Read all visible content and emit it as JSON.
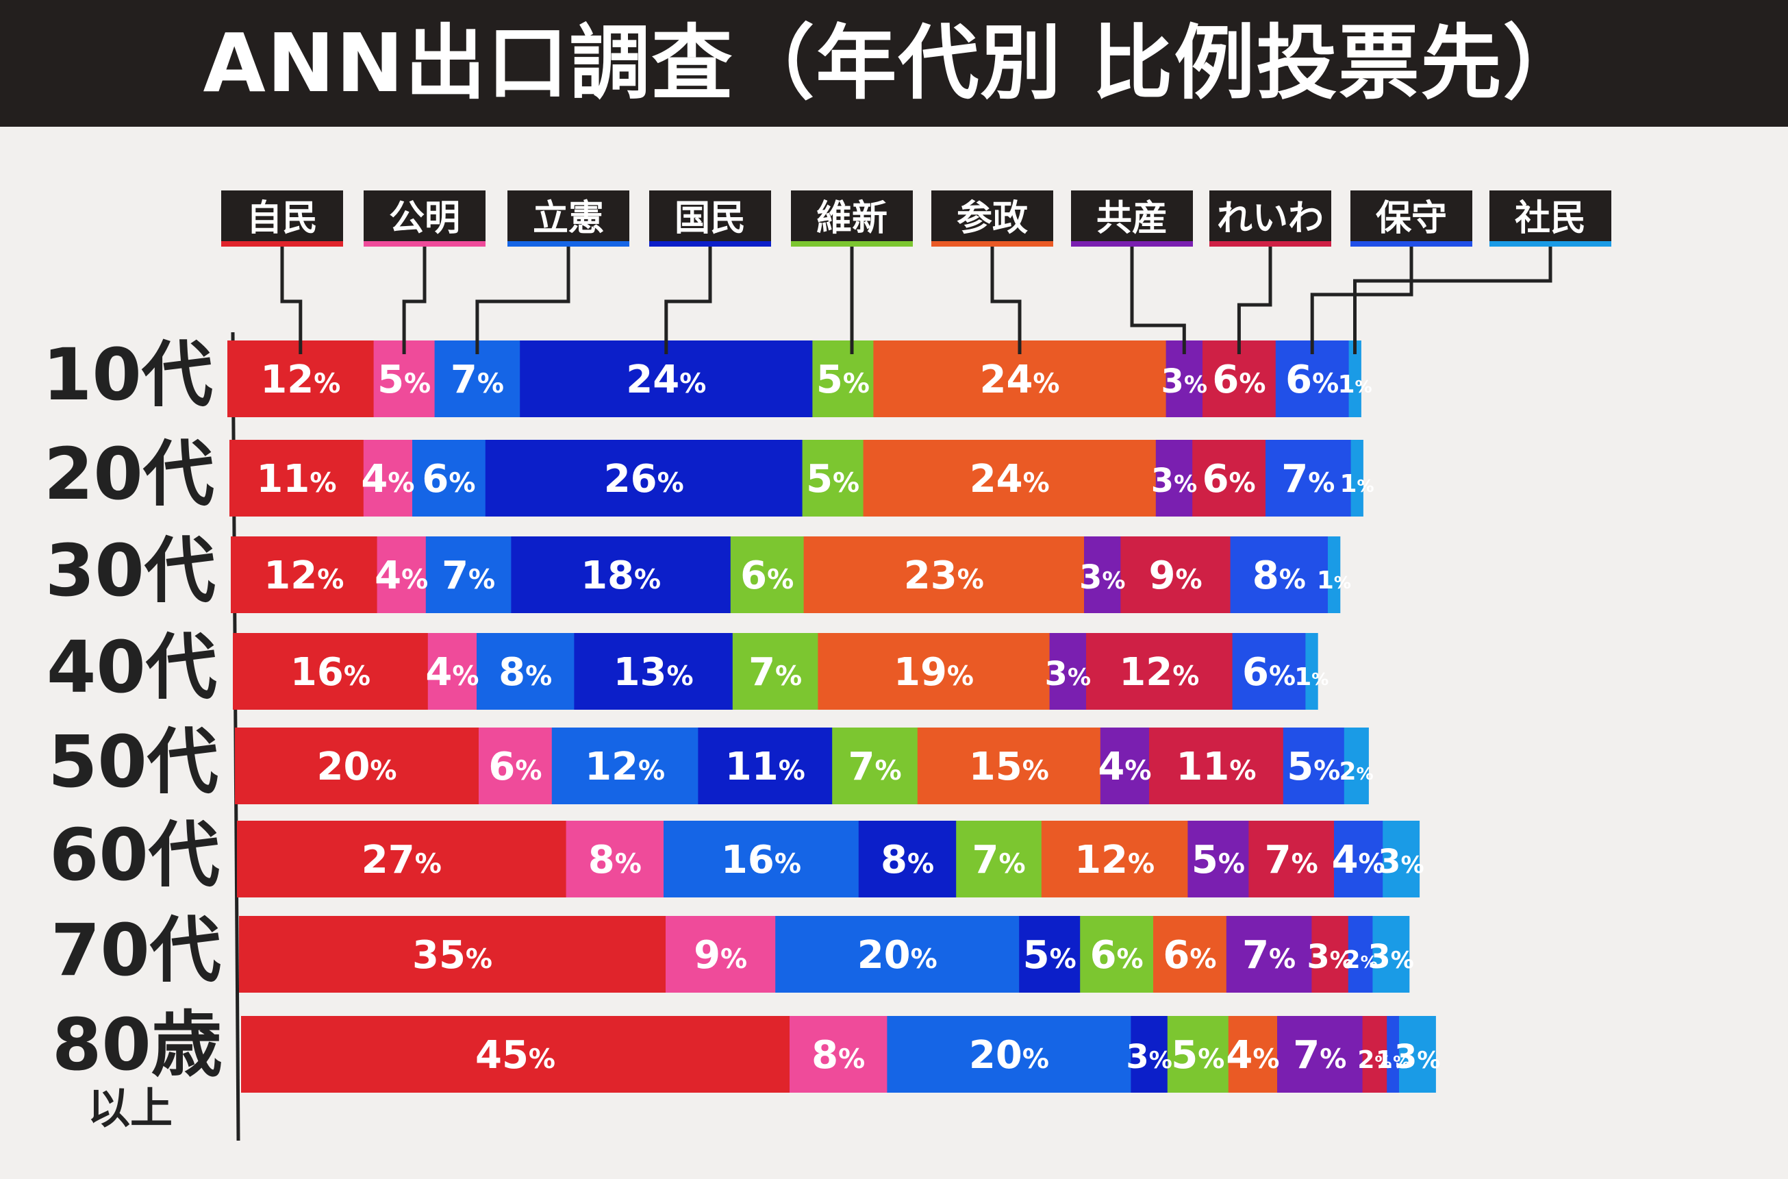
{
  "title": "ANN出口調査（年代別 比例投票先）",
  "chart_data": {
    "type": "bar",
    "stacked": true,
    "orientation": "horizontal",
    "title": "ANN出口調査（年代別 比例投票先）",
    "categories": [
      "10代",
      "20代",
      "30代",
      "40代",
      "50代",
      "60代",
      "70代",
      "80歳"
    ],
    "category_sublabels": [
      "",
      "",
      "",
      "",
      "",
      "",
      "",
      "以上"
    ],
    "series": [
      {
        "name": "自民",
        "color": "#e0242b",
        "values": [
          12,
          11,
          12,
          16,
          20,
          27,
          35,
          45
        ]
      },
      {
        "name": "公明",
        "color": "#ef4b9a",
        "values": [
          5,
          4,
          4,
          4,
          6,
          8,
          9,
          8
        ]
      },
      {
        "name": "立憲",
        "color": "#1565e6",
        "values": [
          7,
          6,
          7,
          8,
          12,
          16,
          20,
          20
        ]
      },
      {
        "name": "国民",
        "color": "#0c1fc9",
        "values": [
          24,
          26,
          18,
          13,
          11,
          8,
          5,
          3
        ]
      },
      {
        "name": "維新",
        "color": "#7cc630",
        "values": [
          5,
          5,
          6,
          7,
          7,
          7,
          6,
          5
        ]
      },
      {
        "name": "参政",
        "color": "#ea5a25",
        "values": [
          24,
          24,
          23,
          19,
          15,
          12,
          6,
          4
        ]
      },
      {
        "name": "共産",
        "color": "#7a1fb0",
        "values": [
          3,
          3,
          3,
          3,
          4,
          5,
          7,
          7
        ]
      },
      {
        "name": "れいわ",
        "color": "#cf2045",
        "values": [
          6,
          6,
          9,
          12,
          11,
          7,
          3,
          2
        ]
      },
      {
        "name": "保守",
        "color": "#2150e8",
        "values": [
          6,
          7,
          8,
          6,
          5,
          4,
          2,
          1
        ]
      },
      {
        "name": "社民",
        "color": "#1a9be6",
        "values": [
          1,
          1,
          1,
          1,
          2,
          3,
          3,
          3
        ]
      }
    ],
    "value_suffix": "%",
    "legend_placement": "top",
    "grid": false
  }
}
